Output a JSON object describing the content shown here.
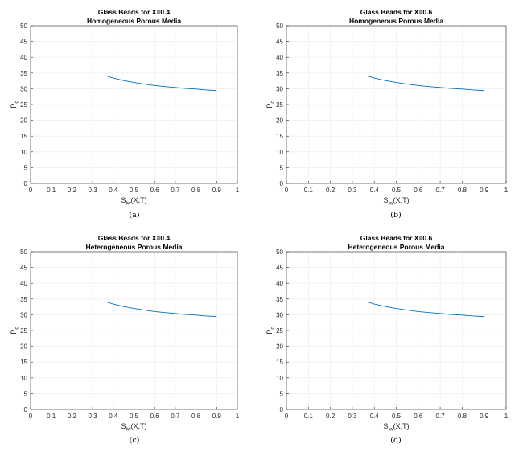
{
  "figure_colors": {
    "line": "#0072BD",
    "grid": "#ebebeb",
    "axis": "#262626"
  },
  "chart_data": [
    {
      "type": "line",
      "title": "Glass Beads for X=0.4",
      "subtitle": "Homogeneous Porous Media",
      "xlabel_main": "S",
      "xlabel_sub": "lw",
      "xlabel_tail": "(X,T)",
      "ylabel_main": "P",
      "ylabel_sub": "c",
      "xlim": [
        0,
        1
      ],
      "ylim": [
        0,
        50
      ],
      "xticks": [
        0,
        0.1,
        0.2,
        0.3,
        0.4,
        0.5,
        0.6,
        0.7,
        0.8,
        0.9,
        1
      ],
      "yticks": [
        0,
        5,
        10,
        15,
        20,
        25,
        30,
        35,
        40,
        45,
        50
      ],
      "grid": true,
      "caption": "(a)",
      "series": [
        {
          "x": [
            0.37,
            0.4,
            0.45,
            0.5,
            0.55,
            0.6,
            0.65,
            0.7,
            0.75,
            0.8,
            0.85,
            0.9
          ],
          "y": [
            34.0,
            33.4,
            32.6,
            32.0,
            31.5,
            31.0,
            30.7,
            30.4,
            30.1,
            29.9,
            29.6,
            29.4
          ]
        }
      ]
    },
    {
      "type": "line",
      "title": "Glass Beads for X=0.6",
      "subtitle": "Homogeneous Porous Media",
      "xlabel_main": "S",
      "xlabel_sub": "lw",
      "xlabel_tail": "(X,T)",
      "ylabel_main": "P",
      "ylabel_sub": "c",
      "xlim": [
        0,
        1
      ],
      "ylim": [
        0,
        50
      ],
      "xticks": [
        0,
        0.1,
        0.2,
        0.3,
        0.4,
        0.5,
        0.6,
        0.7,
        0.8,
        0.9,
        1
      ],
      "yticks": [
        0,
        5,
        10,
        15,
        20,
        25,
        30,
        35,
        40,
        45,
        50
      ],
      "grid": true,
      "caption": "(b)",
      "series": [
        {
          "x": [
            0.37,
            0.4,
            0.45,
            0.5,
            0.55,
            0.6,
            0.65,
            0.7,
            0.75,
            0.8,
            0.85,
            0.9
          ],
          "y": [
            34.0,
            33.4,
            32.6,
            32.0,
            31.5,
            31.0,
            30.7,
            30.4,
            30.1,
            29.9,
            29.6,
            29.4
          ]
        }
      ]
    },
    {
      "type": "line",
      "title": "Glass Beads for X=0.4",
      "subtitle": "Heterogeneous Porous Media",
      "xlabel_main": "S",
      "xlabel_sub": "lw",
      "xlabel_tail": "(X,T)",
      "ylabel_main": "P",
      "ylabel_sub": "c",
      "xlim": [
        0,
        1
      ],
      "ylim": [
        0,
        50
      ],
      "xticks": [
        0,
        0.1,
        0.2,
        0.3,
        0.4,
        0.5,
        0.6,
        0.7,
        0.8,
        0.9,
        1
      ],
      "yticks": [
        0,
        5,
        10,
        15,
        20,
        25,
        30,
        35,
        40,
        45,
        50
      ],
      "grid": true,
      "caption": "(c)",
      "series": [
        {
          "x": [
            0.37,
            0.4,
            0.45,
            0.5,
            0.55,
            0.6,
            0.65,
            0.7,
            0.75,
            0.8,
            0.85,
            0.9
          ],
          "y": [
            34.0,
            33.4,
            32.6,
            32.0,
            31.5,
            31.0,
            30.7,
            30.4,
            30.1,
            29.9,
            29.6,
            29.4
          ]
        }
      ]
    },
    {
      "type": "line",
      "title": "Glass Beads for X=0.6",
      "subtitle": "Heterogeneous Porous Media",
      "xlabel_main": "S",
      "xlabel_sub": "lw",
      "xlabel_tail": "(X,T)",
      "ylabel_main": "P",
      "ylabel_sub": "c",
      "xlim": [
        0,
        1
      ],
      "ylim": [
        0,
        50
      ],
      "xticks": [
        0,
        0.1,
        0.2,
        0.3,
        0.4,
        0.5,
        0.6,
        0.7,
        0.8,
        0.9,
        1
      ],
      "yticks": [
        0,
        5,
        10,
        15,
        20,
        25,
        30,
        35,
        40,
        45,
        50
      ],
      "grid": true,
      "caption": "(d)",
      "series": [
        {
          "x": [
            0.37,
            0.4,
            0.45,
            0.5,
            0.55,
            0.6,
            0.65,
            0.7,
            0.75,
            0.8,
            0.85,
            0.9
          ],
          "y": [
            34.0,
            33.4,
            32.6,
            32.0,
            31.5,
            31.0,
            30.7,
            30.4,
            30.1,
            29.9,
            29.6,
            29.4
          ]
        }
      ]
    }
  ]
}
